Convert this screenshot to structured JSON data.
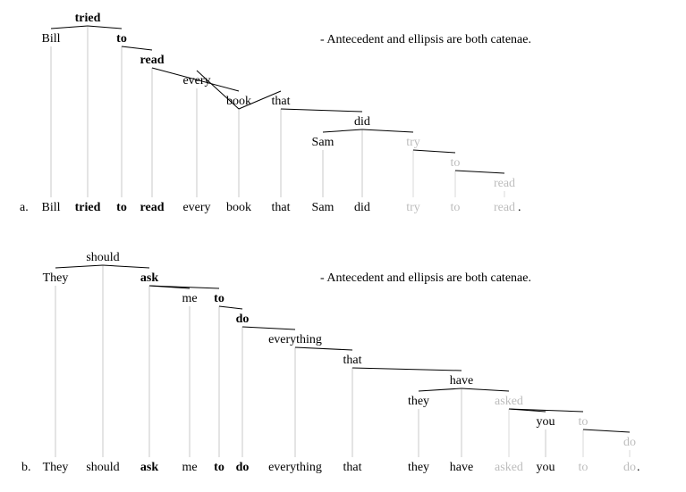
{
  "tree_a": {
    "label": "a.",
    "note": "- Antecedent and ellipsis are both catenae.",
    "period": ".",
    "words": [
      {
        "text": "Bill",
        "style": "normal"
      },
      {
        "text": "tried",
        "style": "bold"
      },
      {
        "text": "to",
        "style": "bold"
      },
      {
        "text": "read",
        "style": "bold"
      },
      {
        "text": "every",
        "style": "normal"
      },
      {
        "text": "book",
        "style": "normal"
      },
      {
        "text": "that",
        "style": "normal"
      },
      {
        "text": "Sam",
        "style": "normal"
      },
      {
        "text": "did",
        "style": "normal"
      },
      {
        "text": "try",
        "style": "elided"
      },
      {
        "text": "to",
        "style": "elided"
      },
      {
        "text": "read",
        "style": "elided"
      }
    ],
    "edges": [
      [
        1,
        0
      ],
      [
        1,
        2
      ],
      [
        2,
        3
      ],
      [
        3,
        5
      ],
      [
        5,
        4
      ],
      [
        5,
        6
      ],
      [
        6,
        8
      ],
      [
        8,
        7
      ],
      [
        8,
        9
      ],
      [
        9,
        10
      ],
      [
        10,
        11
      ]
    ]
  },
  "tree_b": {
    "label": "b.",
    "note": "- Antecedent and ellipsis are both catenae.",
    "period": ".",
    "words": [
      {
        "text": "They",
        "style": "normal"
      },
      {
        "text": "should",
        "style": "normal"
      },
      {
        "text": "ask",
        "style": "bold"
      },
      {
        "text": "me",
        "style": "normal"
      },
      {
        "text": "to",
        "style": "bold"
      },
      {
        "text": "do",
        "style": "bold"
      },
      {
        "text": "everything",
        "style": "normal"
      },
      {
        "text": "that",
        "style": "normal"
      },
      {
        "text": "they",
        "style": "normal"
      },
      {
        "text": "have",
        "style": "normal"
      },
      {
        "text": "asked",
        "style": "elided"
      },
      {
        "text": "you",
        "style": "normal"
      },
      {
        "text": "to",
        "style": "elided"
      },
      {
        "text": "do",
        "style": "elided"
      }
    ],
    "edges": [
      [
        1,
        0
      ],
      [
        1,
        2
      ],
      [
        2,
        3
      ],
      [
        2,
        4
      ],
      [
        4,
        5
      ],
      [
        5,
        6
      ],
      [
        6,
        7
      ],
      [
        7,
        9
      ],
      [
        9,
        8
      ],
      [
        9,
        10
      ],
      [
        10,
        11
      ],
      [
        10,
        12
      ],
      [
        12,
        13
      ]
    ]
  }
}
